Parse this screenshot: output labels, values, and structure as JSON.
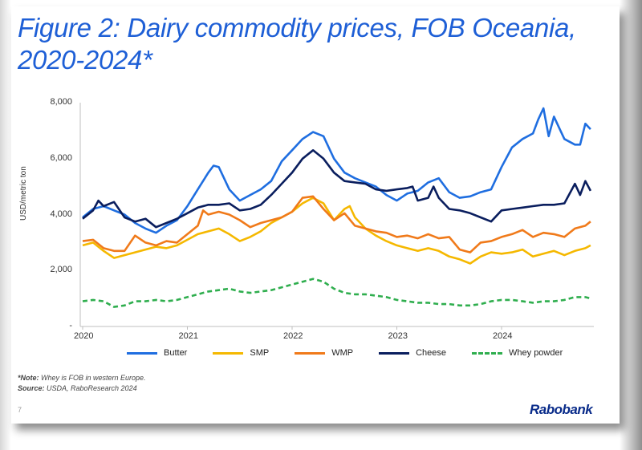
{
  "title": "Figure 2: Dairy commodity prices, FOB Oceania, 2020-2024*",
  "note_label": "*Note:",
  "note_text": " Whey is FOB in western Europe.",
  "source_label": "Source:",
  "source_text": " USDA, RaboResearch 2024",
  "page_number": "7",
  "logo_text": "Rabobank",
  "chart_data": {
    "type": "line",
    "ylabel": "USD/metric ton",
    "ylim": [
      0,
      8000
    ],
    "yticks": [
      {
        "value": 0,
        "label": "-"
      },
      {
        "value": 2000,
        "label": "2,000"
      },
      {
        "value": 4000,
        "label": "4,000"
      },
      {
        "value": 6000,
        "label": "6,000"
      },
      {
        "value": 8000,
        "label": "8,000"
      }
    ],
    "xlim": [
      2020.0,
      2024.85
    ],
    "xticks": [
      "2020",
      "2021",
      "2022",
      "2023",
      "2024"
    ],
    "legend_position": "bottom",
    "series": [
      {
        "name": "Butter",
        "color": "#1f6ee0",
        "dash": "none",
        "points": [
          [
            2020.0,
            3900
          ],
          [
            2020.1,
            4200
          ],
          [
            2020.2,
            4300
          ],
          [
            2020.3,
            4150
          ],
          [
            2020.4,
            4000
          ],
          [
            2020.5,
            3700
          ],
          [
            2020.6,
            3500
          ],
          [
            2020.7,
            3350
          ],
          [
            2020.8,
            3600
          ],
          [
            2020.9,
            3800
          ],
          [
            2021.0,
            4300
          ],
          [
            2021.1,
            4900
          ],
          [
            2021.2,
            5500
          ],
          [
            2021.25,
            5750
          ],
          [
            2021.3,
            5700
          ],
          [
            2021.4,
            4900
          ],
          [
            2021.5,
            4500
          ],
          [
            2021.6,
            4700
          ],
          [
            2021.7,
            4900
          ],
          [
            2021.8,
            5200
          ],
          [
            2021.9,
            5900
          ],
          [
            2022.0,
            6300
          ],
          [
            2022.1,
            6700
          ],
          [
            2022.2,
            6950
          ],
          [
            2022.3,
            6800
          ],
          [
            2022.4,
            6000
          ],
          [
            2022.5,
            5500
          ],
          [
            2022.6,
            5300
          ],
          [
            2022.7,
            5150
          ],
          [
            2022.8,
            5000
          ],
          [
            2022.9,
            4700
          ],
          [
            2023.0,
            4500
          ],
          [
            2023.1,
            4750
          ],
          [
            2023.2,
            4850
          ],
          [
            2023.3,
            5150
          ],
          [
            2023.4,
            5300
          ],
          [
            2023.5,
            4800
          ],
          [
            2023.6,
            4600
          ],
          [
            2023.7,
            4650
          ],
          [
            2023.8,
            4800
          ],
          [
            2023.9,
            4900
          ],
          [
            2024.0,
            5700
          ],
          [
            2024.1,
            6400
          ],
          [
            2024.2,
            6700
          ],
          [
            2024.3,
            6900
          ],
          [
            2024.35,
            7400
          ],
          [
            2024.4,
            7800
          ],
          [
            2024.45,
            6800
          ],
          [
            2024.5,
            7500
          ],
          [
            2024.55,
            7100
          ],
          [
            2024.6,
            6700
          ],
          [
            2024.7,
            6500
          ],
          [
            2024.75,
            6500
          ],
          [
            2024.8,
            7250
          ],
          [
            2024.85,
            7050
          ]
        ]
      },
      {
        "name": "SMP",
        "color": "#f5b800",
        "dash": "none",
        "points": [
          [
            2020.0,
            2900
          ],
          [
            2020.1,
            3000
          ],
          [
            2020.2,
            2700
          ],
          [
            2020.3,
            2450
          ],
          [
            2020.4,
            2550
          ],
          [
            2020.5,
            2650
          ],
          [
            2020.6,
            2750
          ],
          [
            2020.7,
            2850
          ],
          [
            2020.8,
            2800
          ],
          [
            2020.9,
            2900
          ],
          [
            2021.0,
            3100
          ],
          [
            2021.1,
            3300
          ],
          [
            2021.2,
            3400
          ],
          [
            2021.3,
            3500
          ],
          [
            2021.4,
            3300
          ],
          [
            2021.5,
            3050
          ],
          [
            2021.6,
            3200
          ],
          [
            2021.7,
            3400
          ],
          [
            2021.8,
            3700
          ],
          [
            2021.9,
            3900
          ],
          [
            2022.0,
            4100
          ],
          [
            2022.1,
            4400
          ],
          [
            2022.2,
            4600
          ],
          [
            2022.3,
            4400
          ],
          [
            2022.4,
            3800
          ],
          [
            2022.5,
            4200
          ],
          [
            2022.55,
            4300
          ],
          [
            2022.6,
            3900
          ],
          [
            2022.7,
            3500
          ],
          [
            2022.8,
            3250
          ],
          [
            2022.9,
            3050
          ],
          [
            2023.0,
            2900
          ],
          [
            2023.1,
            2800
          ],
          [
            2023.2,
            2700
          ],
          [
            2023.3,
            2800
          ],
          [
            2023.4,
            2700
          ],
          [
            2023.5,
            2500
          ],
          [
            2023.6,
            2400
          ],
          [
            2023.7,
            2250
          ],
          [
            2023.8,
            2500
          ],
          [
            2023.9,
            2650
          ],
          [
            2024.0,
            2600
          ],
          [
            2024.1,
            2650
          ],
          [
            2024.2,
            2750
          ],
          [
            2024.3,
            2500
          ],
          [
            2024.4,
            2600
          ],
          [
            2024.5,
            2700
          ],
          [
            2024.6,
            2550
          ],
          [
            2024.7,
            2700
          ],
          [
            2024.8,
            2800
          ],
          [
            2024.85,
            2900
          ]
        ]
      },
      {
        "name": "WMP",
        "color": "#f07a1a",
        "dash": "none",
        "points": [
          [
            2020.0,
            3050
          ],
          [
            2020.1,
            3100
          ],
          [
            2020.2,
            2800
          ],
          [
            2020.3,
            2700
          ],
          [
            2020.4,
            2700
          ],
          [
            2020.5,
            3250
          ],
          [
            2020.6,
            3000
          ],
          [
            2020.7,
            2900
          ],
          [
            2020.8,
            3050
          ],
          [
            2020.9,
            3000
          ],
          [
            2021.0,
            3300
          ],
          [
            2021.1,
            3600
          ],
          [
            2021.15,
            4150
          ],
          [
            2021.2,
            4000
          ],
          [
            2021.3,
            4100
          ],
          [
            2021.4,
            4000
          ],
          [
            2021.5,
            3800
          ],
          [
            2021.6,
            3550
          ],
          [
            2021.7,
            3700
          ],
          [
            2021.8,
            3800
          ],
          [
            2021.9,
            3900
          ],
          [
            2022.0,
            4100
          ],
          [
            2022.1,
            4600
          ],
          [
            2022.2,
            4650
          ],
          [
            2022.3,
            4200
          ],
          [
            2022.4,
            3800
          ],
          [
            2022.5,
            4050
          ],
          [
            2022.6,
            3600
          ],
          [
            2022.7,
            3500
          ],
          [
            2022.8,
            3400
          ],
          [
            2022.9,
            3350
          ],
          [
            2023.0,
            3200
          ],
          [
            2023.1,
            3250
          ],
          [
            2023.2,
            3150
          ],
          [
            2023.3,
            3300
          ],
          [
            2023.4,
            3150
          ],
          [
            2023.5,
            3200
          ],
          [
            2023.6,
            2750
          ],
          [
            2023.7,
            2650
          ],
          [
            2023.8,
            3000
          ],
          [
            2023.9,
            3050
          ],
          [
            2024.0,
            3200
          ],
          [
            2024.1,
            3300
          ],
          [
            2024.2,
            3450
          ],
          [
            2024.3,
            3200
          ],
          [
            2024.4,
            3350
          ],
          [
            2024.5,
            3300
          ],
          [
            2024.6,
            3200
          ],
          [
            2024.7,
            3500
          ],
          [
            2024.8,
            3600
          ],
          [
            2024.85,
            3750
          ]
        ]
      },
      {
        "name": "Cheese",
        "color": "#0a1e5e",
        "dash": "none",
        "points": [
          [
            2020.0,
            3850
          ],
          [
            2020.1,
            4150
          ],
          [
            2020.15,
            4500
          ],
          [
            2020.2,
            4300
          ],
          [
            2020.3,
            4450
          ],
          [
            2020.4,
            3900
          ],
          [
            2020.5,
            3750
          ],
          [
            2020.6,
            3850
          ],
          [
            2020.7,
            3550
          ],
          [
            2020.8,
            3700
          ],
          [
            2020.9,
            3850
          ],
          [
            2021.0,
            4050
          ],
          [
            2021.1,
            4250
          ],
          [
            2021.2,
            4350
          ],
          [
            2021.3,
            4350
          ],
          [
            2021.4,
            4400
          ],
          [
            2021.5,
            4150
          ],
          [
            2021.6,
            4200
          ],
          [
            2021.7,
            4350
          ],
          [
            2021.8,
            4700
          ],
          [
            2021.9,
            5100
          ],
          [
            2022.0,
            5500
          ],
          [
            2022.1,
            6000
          ],
          [
            2022.2,
            6300
          ],
          [
            2022.3,
            6000
          ],
          [
            2022.4,
            5500
          ],
          [
            2022.5,
            5200
          ],
          [
            2022.6,
            5150
          ],
          [
            2022.7,
            5100
          ],
          [
            2022.8,
            4900
          ],
          [
            2022.9,
            4850
          ],
          [
            2023.0,
            4900
          ],
          [
            2023.1,
            4950
          ],
          [
            2023.15,
            5000
          ],
          [
            2023.2,
            4500
          ],
          [
            2023.3,
            4600
          ],
          [
            2023.35,
            5000
          ],
          [
            2023.4,
            4600
          ],
          [
            2023.5,
            4200
          ],
          [
            2023.6,
            4150
          ],
          [
            2023.7,
            4050
          ],
          [
            2023.8,
            3900
          ],
          [
            2023.9,
            3750
          ],
          [
            2024.0,
            4150
          ],
          [
            2024.1,
            4200
          ],
          [
            2024.2,
            4250
          ],
          [
            2024.3,
            4300
          ],
          [
            2024.4,
            4350
          ],
          [
            2024.5,
            4350
          ],
          [
            2024.6,
            4400
          ],
          [
            2024.7,
            5100
          ],
          [
            2024.75,
            4700
          ],
          [
            2024.8,
            5200
          ],
          [
            2024.85,
            4850
          ]
        ]
      },
      {
        "name": "Whey powder",
        "color": "#2fae4e",
        "dash": "6,4",
        "points": [
          [
            2020.0,
            900
          ],
          [
            2020.1,
            950
          ],
          [
            2020.2,
            900
          ],
          [
            2020.3,
            700
          ],
          [
            2020.4,
            750
          ],
          [
            2020.5,
            900
          ],
          [
            2020.6,
            900
          ],
          [
            2020.7,
            950
          ],
          [
            2020.8,
            900
          ],
          [
            2020.9,
            950
          ],
          [
            2021.0,
            1050
          ],
          [
            2021.1,
            1150
          ],
          [
            2021.2,
            1250
          ],
          [
            2021.3,
            1300
          ],
          [
            2021.4,
            1350
          ],
          [
            2021.5,
            1250
          ],
          [
            2021.6,
            1200
          ],
          [
            2021.7,
            1250
          ],
          [
            2021.8,
            1300
          ],
          [
            2021.9,
            1400
          ],
          [
            2022.0,
            1500
          ],
          [
            2022.1,
            1600
          ],
          [
            2022.2,
            1700
          ],
          [
            2022.3,
            1600
          ],
          [
            2022.4,
            1350
          ],
          [
            2022.5,
            1200
          ],
          [
            2022.6,
            1150
          ],
          [
            2022.7,
            1150
          ],
          [
            2022.8,
            1100
          ],
          [
            2022.9,
            1050
          ],
          [
            2023.0,
            950
          ],
          [
            2023.1,
            900
          ],
          [
            2023.2,
            850
          ],
          [
            2023.3,
            850
          ],
          [
            2023.4,
            800
          ],
          [
            2023.5,
            800
          ],
          [
            2023.6,
            750
          ],
          [
            2023.7,
            750
          ],
          [
            2023.8,
            800
          ],
          [
            2023.9,
            900
          ],
          [
            2024.0,
            950
          ],
          [
            2024.1,
            950
          ],
          [
            2024.2,
            900
          ],
          [
            2024.3,
            850
          ],
          [
            2024.4,
            900
          ],
          [
            2024.5,
            900
          ],
          [
            2024.6,
            950
          ],
          [
            2024.7,
            1050
          ],
          [
            2024.8,
            1050
          ],
          [
            2024.85,
            1000
          ]
        ]
      }
    ]
  }
}
